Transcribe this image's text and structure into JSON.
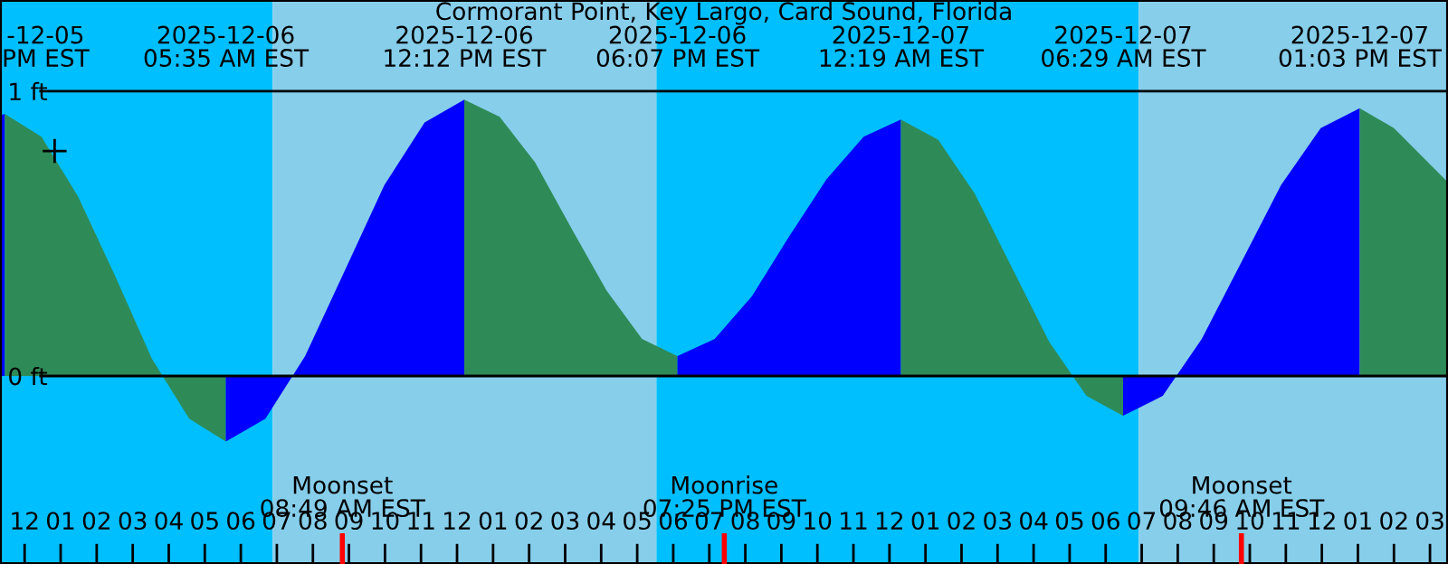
{
  "chart_data": {
    "type": "area",
    "title": "Cormorant Point, Key Largo, Card Sound, Florida",
    "xlim": [
      "2025-12-05T23:19",
      "2025-12-07T15:30"
    ],
    "ylim": [
      -0.66,
      1.32
    ],
    "xticks": [
      {
        "value": "2025-12-06T00:00",
        "label": "12"
      },
      {
        "value": "2025-12-06T01:00",
        "label": "01"
      },
      {
        "value": "2025-12-06T02:00",
        "label": "02"
      },
      {
        "value": "2025-12-06T03:00",
        "label": "03"
      },
      {
        "value": "2025-12-06T04:00",
        "label": "04"
      },
      {
        "value": "2025-12-06T05:00",
        "label": "05"
      },
      {
        "value": "2025-12-06T06:00",
        "label": "06"
      },
      {
        "value": "2025-12-06T07:00",
        "label": "07"
      },
      {
        "value": "2025-12-06T08:00",
        "label": "08"
      },
      {
        "value": "2025-12-06T09:00",
        "label": "09"
      },
      {
        "value": "2025-12-06T10:00",
        "label": "10"
      },
      {
        "value": "2025-12-06T11:00",
        "label": "11"
      },
      {
        "value": "2025-12-06T12:00",
        "label": "12"
      },
      {
        "value": "2025-12-06T13:00",
        "label": "01"
      },
      {
        "value": "2025-12-06T14:00",
        "label": "02"
      },
      {
        "value": "2025-12-06T15:00",
        "label": "03"
      },
      {
        "value": "2025-12-06T16:00",
        "label": "04"
      },
      {
        "value": "2025-12-06T17:00",
        "label": "05"
      },
      {
        "value": "2025-12-06T18:00",
        "label": "06"
      },
      {
        "value": "2025-12-06T19:00",
        "label": "07"
      },
      {
        "value": "2025-12-06T20:00",
        "label": "08"
      },
      {
        "value": "2025-12-06T21:00",
        "label": "09"
      },
      {
        "value": "2025-12-06T22:00",
        "label": "10"
      },
      {
        "value": "2025-12-06T23:00",
        "label": "11"
      },
      {
        "value": "2025-12-07T00:00",
        "label": "12"
      },
      {
        "value": "2025-12-07T01:00",
        "label": "01"
      },
      {
        "value": "2025-12-07T02:00",
        "label": "02"
      },
      {
        "value": "2025-12-07T03:00",
        "label": "03"
      },
      {
        "value": "2025-12-07T04:00",
        "label": "04"
      },
      {
        "value": "2025-12-07T05:00",
        "label": "05"
      },
      {
        "value": "2025-12-07T06:00",
        "label": "06"
      },
      {
        "value": "2025-12-07T07:00",
        "label": "07"
      },
      {
        "value": "2025-12-07T08:00",
        "label": "08"
      },
      {
        "value": "2025-12-07T09:00",
        "label": "09"
      },
      {
        "value": "2025-12-07T10:00",
        "label": "10"
      },
      {
        "value": "2025-12-07T11:00",
        "label": "11"
      },
      {
        "value": "2025-12-07T12:00",
        "label": "12"
      },
      {
        "value": "2025-12-07T13:00",
        "label": "01"
      },
      {
        "value": "2025-12-07T14:00",
        "label": "02"
      },
      {
        "value": "2025-12-07T15:00",
        "label": "03"
      }
    ],
    "yticks": [
      {
        "value": 0,
        "label": "0 ft"
      },
      {
        "value": 1,
        "label": "1 ft"
      }
    ],
    "grid": "y",
    "bands": [
      {
        "axis": "x",
        "from": "2025-12-05T23:19",
        "to": "2025-12-06T06:53",
        "color": "#00bfff"
      },
      {
        "axis": "x",
        "from": "2025-12-06T06:53",
        "to": "2025-12-06T17:32",
        "color": "#87ceeb"
      },
      {
        "axis": "x",
        "from": "2025-12-06T17:32",
        "to": "2025-12-07T06:55",
        "color": "#00bfff"
      },
      {
        "axis": "x",
        "from": "2025-12-07T06:55",
        "to": "2025-12-07T15:30",
        "color": "#87ceeb"
      }
    ],
    "ref_lines": [
      {
        "axis": "x",
        "value": "2025-12-06T08:49",
        "label": "Moonset\n08:49 AM EST",
        "color": "#ff0000"
      },
      {
        "axis": "x",
        "value": "2025-12-06T19:25",
        "label": "Moonrise\n07:25 PM EST",
        "color": "#ff0000"
      },
      {
        "axis": "x",
        "value": "2025-12-07T09:46",
        "label": "Moonset\n09:46 AM EST",
        "color": "#ff0000"
      }
    ],
    "series": [
      {
        "color": "#0000ff",
        "x": [
          "2025-12-05T23:19",
          "2025-12-05T23:27"
        ],
        "values": [
          0.915,
          0.92
        ]
      },
      {
        "color": "#2e8b57",
        "x": [
          "2025-12-05T23:27",
          "2025-12-06T00:28",
          "2025-12-06T01:29",
          "2025-12-06T02:31",
          "2025-12-06T03:32",
          "2025-12-06T04:34",
          "2025-12-06T05:35"
        ],
        "values": [
          0.92,
          0.84,
          0.63,
          0.35,
          0.06,
          -0.15,
          -0.23
        ]
      },
      {
        "color": "#0000ff",
        "x": [
          "2025-12-06T05:35",
          "2025-12-06T06:41",
          "2025-12-06T07:47",
          "2025-12-06T08:53",
          "2025-12-06T09:59",
          "2025-12-06T11:06",
          "2025-12-06T12:12"
        ],
        "values": [
          -0.23,
          -0.15,
          0.07,
          0.37,
          0.67,
          0.89,
          0.97
        ]
      },
      {
        "color": "#2e8b57",
        "x": [
          "2025-12-06T12:12",
          "2025-12-06T13:11",
          "2025-12-06T14:10",
          "2025-12-06T15:10",
          "2025-12-06T16:09",
          "2025-12-06T17:08",
          "2025-12-06T18:07"
        ],
        "values": [
          0.97,
          0.91,
          0.75,
          0.52,
          0.3,
          0.13,
          0.07
        ]
      },
      {
        "color": "#0000ff",
        "x": [
          "2025-12-06T18:07",
          "2025-12-06T19:09",
          "2025-12-06T20:11",
          "2025-12-06T21:13",
          "2025-12-06T22:15",
          "2025-12-06T23:17",
          "2025-12-07T00:19"
        ],
        "values": [
          0.07,
          0.13,
          0.28,
          0.49,
          0.69,
          0.84,
          0.9
        ]
      },
      {
        "color": "#2e8b57",
        "x": [
          "2025-12-07T00:19",
          "2025-12-07T01:21",
          "2025-12-07T02:22",
          "2025-12-07T03:24",
          "2025-12-07T04:26",
          "2025-12-07T05:28",
          "2025-12-07T06:29"
        ],
        "values": [
          0.9,
          0.83,
          0.64,
          0.38,
          0.12,
          -0.07,
          -0.14
        ]
      },
      {
        "color": "#0000ff",
        "x": [
          "2025-12-07T06:29",
          "2025-12-07T07:35",
          "2025-12-07T08:40",
          "2025-12-07T09:46",
          "2025-12-07T10:52",
          "2025-12-07T11:58",
          "2025-12-07T13:03"
        ],
        "values": [
          -0.14,
          -0.07,
          0.13,
          0.4,
          0.67,
          0.87,
          0.94
        ]
      },
      {
        "color": "#2e8b57",
        "x": [
          "2025-12-07T13:03",
          "2025-12-07T14:00",
          "2025-12-07T15:30"
        ],
        "values": [
          0.94,
          0.87,
          0.68
        ]
      },
      {
        "type": "scatter",
        "marker": "cross",
        "color": "#000000",
        "x": [
          "2025-12-06T00:50"
        ],
        "values": [
          0.79
        ]
      }
    ],
    "annotations": [
      "-12-05\nPM EST",
      "2025-12-06\n05:35 AM EST",
      "2025-12-06\n12:12 PM EST",
      "2025-12-06\n06:07 PM EST",
      "2025-12-07\n12:19 AM EST",
      "2025-12-07\n06:29 AM EST",
      "2025-12-07\n01:03 PM EST"
    ]
  }
}
